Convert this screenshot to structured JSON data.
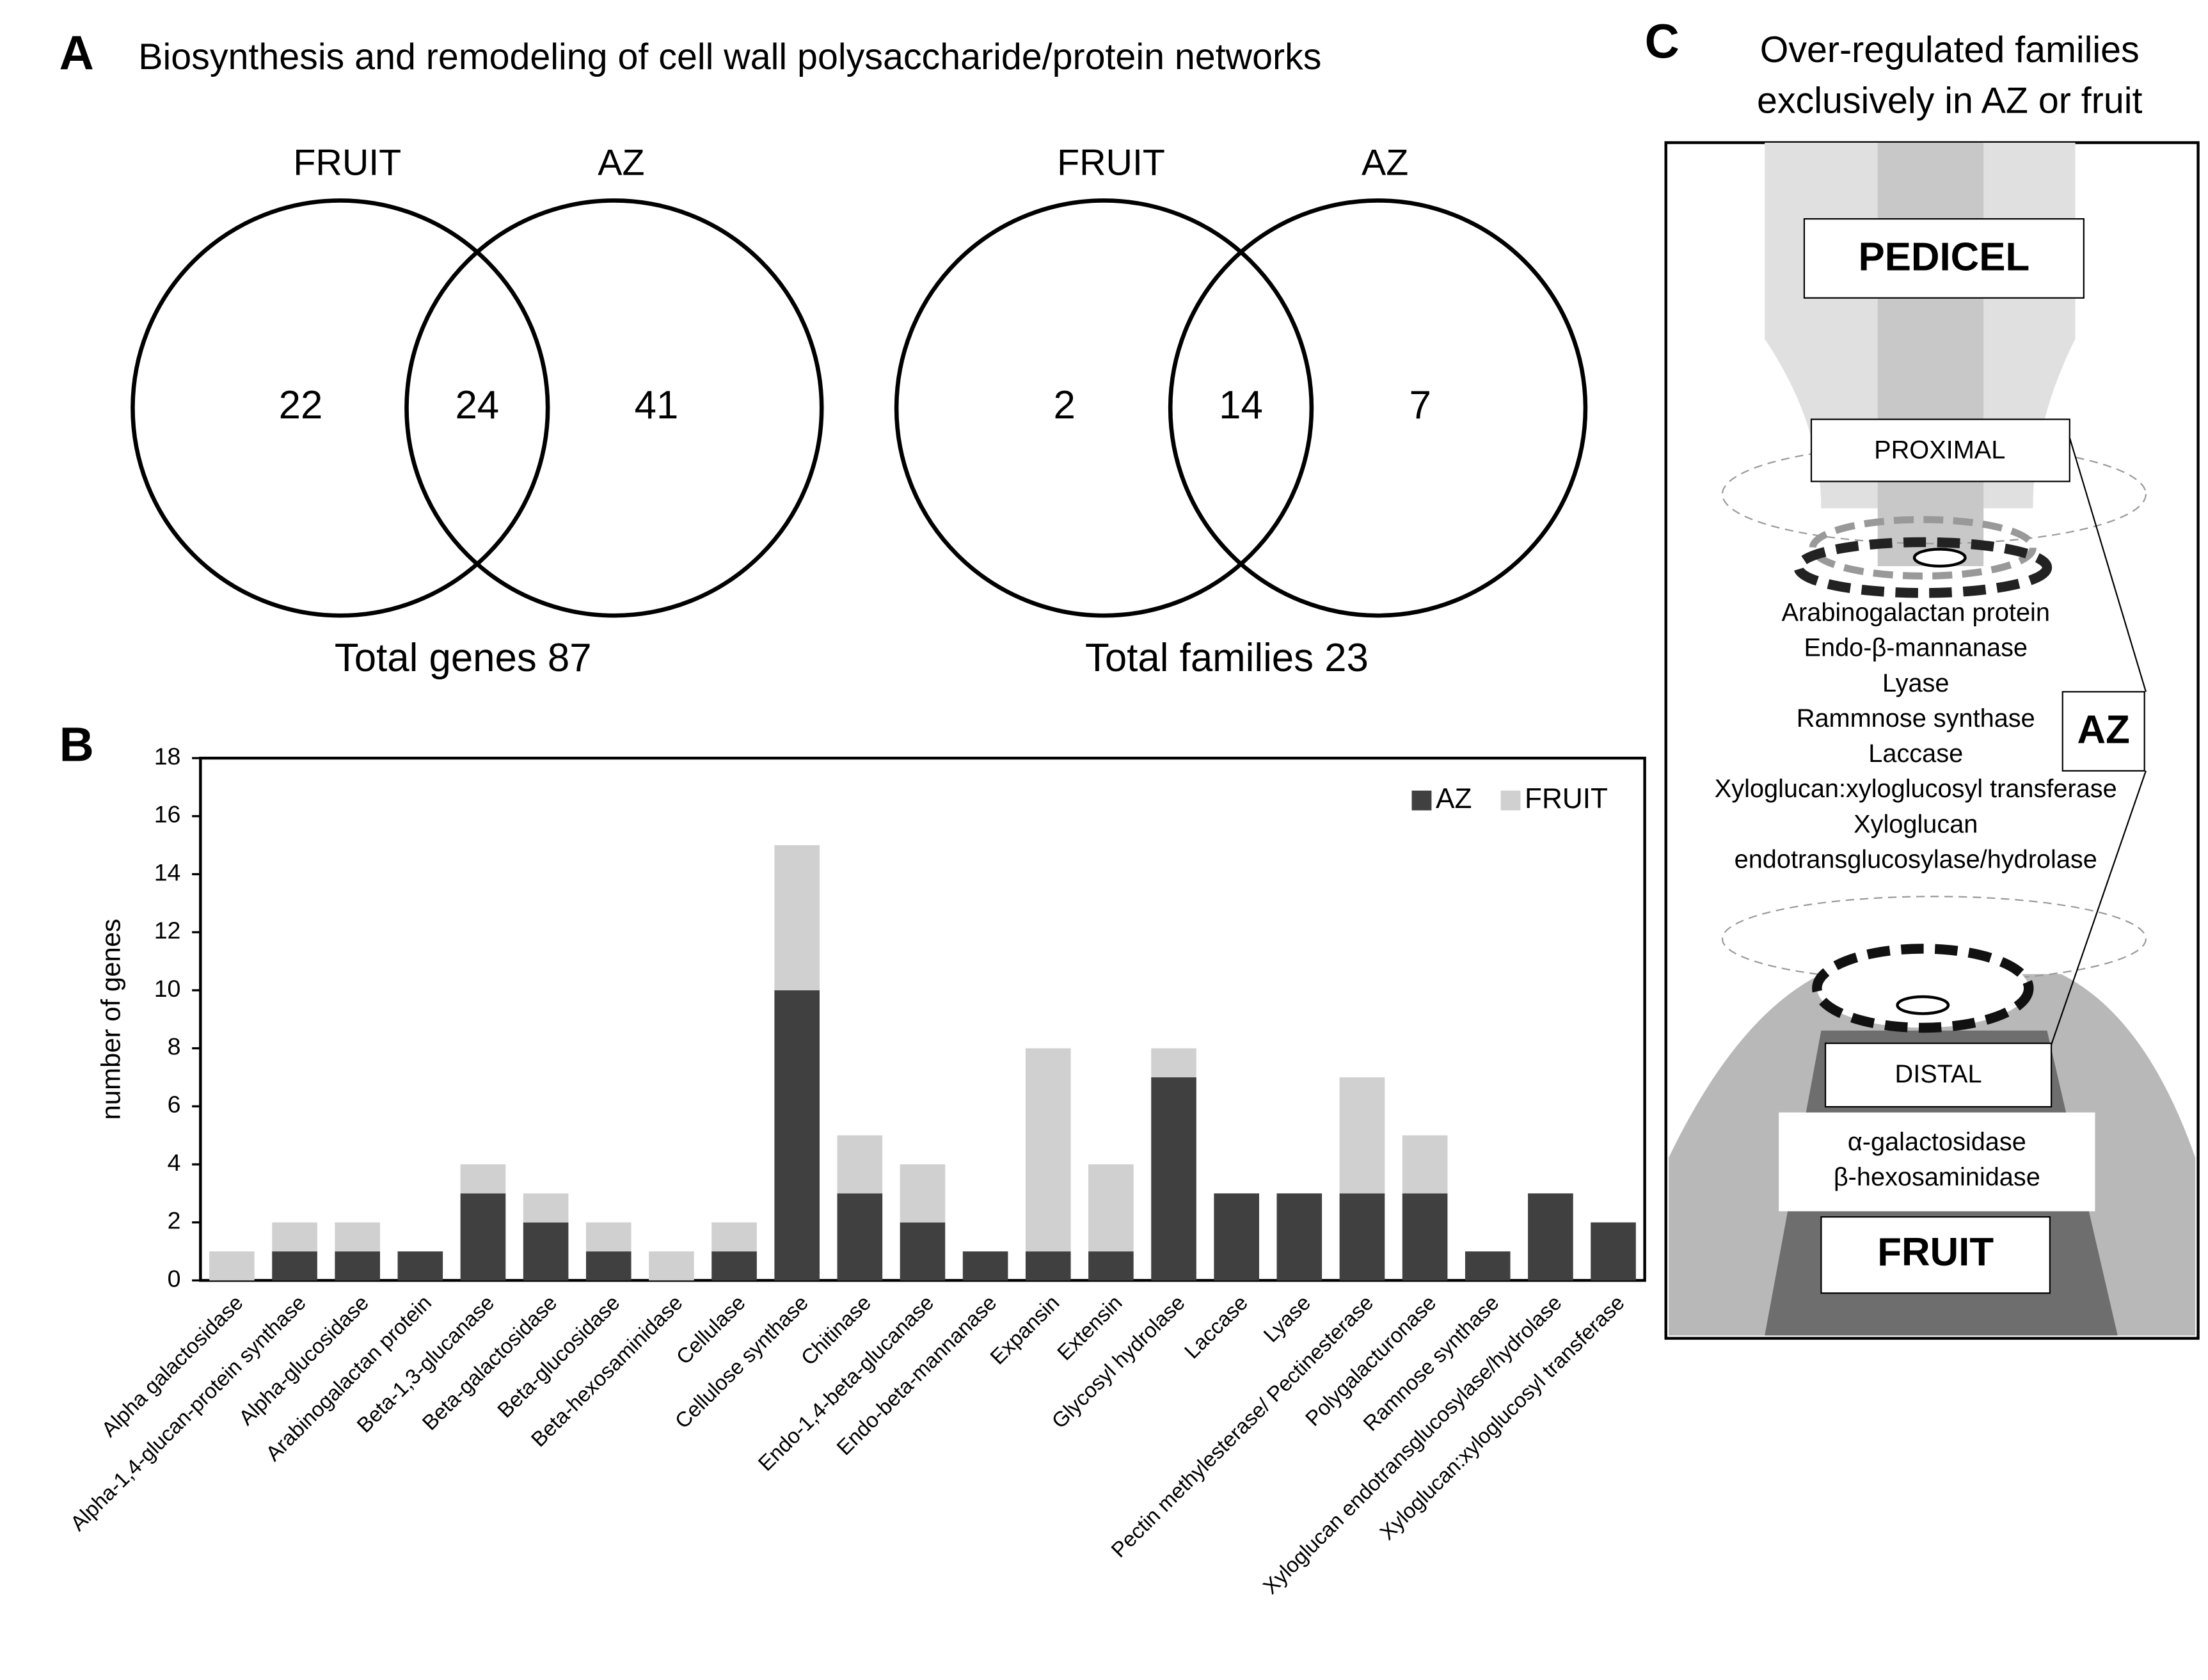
{
  "panel_labels": [
    "A",
    "B",
    "C"
  ],
  "chart_data": [
    {
      "type": "venn",
      "title": "Biosynthesis and remodeling of cell wall polysaccharide/protein networks",
      "sets": [
        "FRUIT",
        "AZ"
      ],
      "values": [
        22,
        24,
        41
      ],
      "caption": "Total genes 87"
    },
    {
      "type": "venn",
      "sets": [
        "FRUIT",
        "AZ"
      ],
      "values": [
        2,
        14,
        7
      ],
      "caption": "Total families 23"
    },
    {
      "type": "bar",
      "stacked": true,
      "ylabel": "number of genes",
      "categories": [
        "Alpha galactosidase",
        "Alpha-1,4-glucan-protein synthase",
        "Alpha-glucosidase",
        "Arabinogalactan protein",
        "Beta-1,3-glucanase",
        "Beta-galactosidase",
        "Beta-glucosidase",
        "Beta-hexosaminidase",
        "Cellulase",
        "Cellulose synthase",
        "Chitinase",
        "Endo-1,4-beta-glucanase",
        "Endo-beta-mannanase",
        "Expansin",
        "Extensin",
        "Glycosyl hydrolase",
        "Laccase",
        "Lyase",
        "Pectin methylesterase/ Pectinesterase",
        "Polygalacturonase",
        "Ramnose synthase",
        "Xyloglucan endotransglucosylase/hydrolase",
        "Xyloglucan:xyloglucosyl transferase"
      ],
      "series": [
        {
          "name": "AZ",
          "color": "#404040",
          "values": [
            0,
            1,
            1,
            1,
            3,
            2,
            1,
            0,
            1,
            10,
            3,
            2,
            1,
            1,
            1,
            7,
            3,
            3,
            3,
            3,
            1,
            3,
            2
          ]
        },
        {
          "name": "FRUIT",
          "color": "#d0d0d0",
          "values": [
            1,
            1,
            1,
            0,
            1,
            1,
            1,
            1,
            1,
            5,
            2,
            2,
            0,
            7,
            3,
            1,
            0,
            0,
            4,
            2,
            0,
            0,
            0
          ]
        }
      ],
      "ylim": [
        0,
        18
      ],
      "yticks": [
        0,
        2,
        4,
        6,
        8,
        10,
        12,
        14,
        16,
        18
      ],
      "legend": "top-right"
    }
  ],
  "diagram": {
    "title_lines": [
      "Over-regulated families",
      "exclusively in AZ or fruit"
    ],
    "pedicel": "PEDICEL",
    "proximal": "PROXIMAL",
    "az": "AZ",
    "distal": "DISTAL",
    "fruit": "FRUIT",
    "az_families": [
      "Arabinogalactan protein",
      "Endo-β-mannanase",
      "Lyase",
      "Rammnose synthase",
      "Laccase",
      "Xyloglucan:xyloglucosyl transferase",
      "Xyloglucan",
      "endotransglucosylase/hydrolase"
    ],
    "fruit_families": [
      "α-galactosidase",
      "β-hexosaminidase"
    ]
  }
}
